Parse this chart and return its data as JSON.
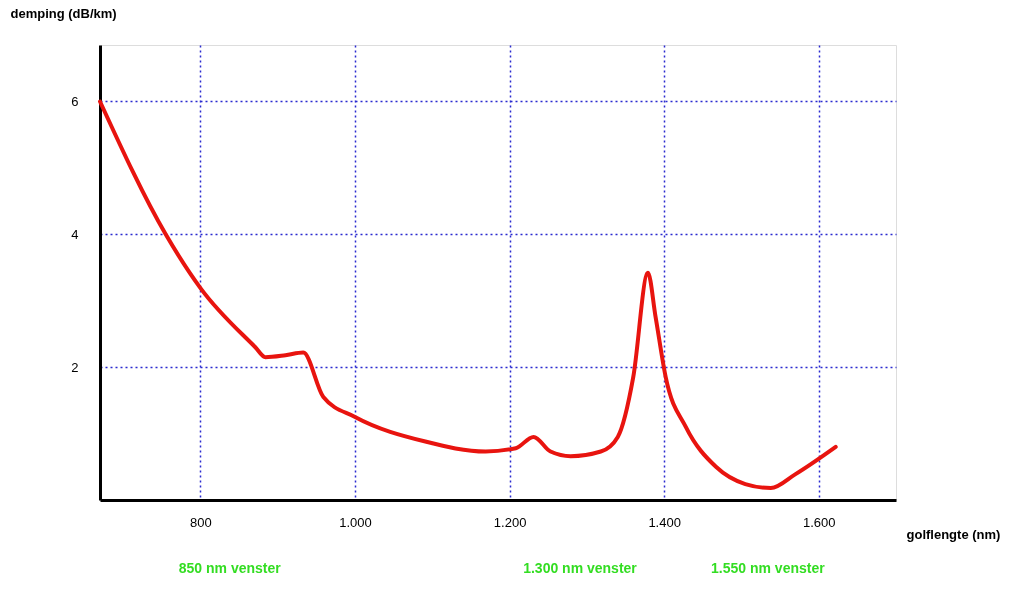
{
  "chart_data": {
    "type": "line",
    "xlabel": "golflengte (nm)",
    "ylabel": "demping (dB/km)",
    "x": [
      670,
      755,
      800,
      871,
      884,
      910,
      933,
      959,
      1000,
      1091,
      1169,
      1208,
      1231,
      1253,
      1279,
      1318,
      1340,
      1360,
      1379,
      1389,
      1402,
      1428,
      1467,
      1505,
      1538,
      1570,
      1622
    ],
    "series": [
      {
        "color": "#e8140f",
        "values": [
          6,
          4,
          3.19,
          2.3,
          2.15,
          2.18,
          2.22,
          1.55,
          1.25,
          0.88,
          0.73,
          0.78,
          0.95,
          0.73,
          0.66,
          0.73,
          0.95,
          1.85,
          3.42,
          2.75,
          1.85,
          1.1,
          0.5,
          0.24,
          0.18,
          0.39,
          0.8
        ]
      }
    ],
    "xlim": [
      670,
      1700
    ],
    "ylim": [
      0,
      6.85
    ],
    "xticks": [
      800,
      {
        "value": 1000,
        "label": "1.000"
      },
      {
        "value": 1200,
        "label": "1.200"
      },
      {
        "value": 1400,
        "label": "1.400"
      },
      {
        "value": 1600,
        "label": "1.600"
      }
    ],
    "yticks": [
      2,
      4,
      6
    ],
    "grid": true,
    "marker": "none",
    "line_style": "solid",
    "annotations": [
      "850 nm venster",
      "1.300 nm venster",
      "1.550 nm venster"
    ]
  }
}
